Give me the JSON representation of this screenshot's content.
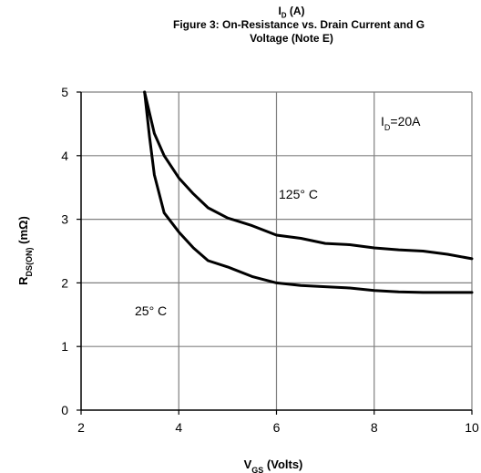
{
  "header": {
    "top_label": "I",
    "top_label_sub": "D",
    "top_label_unit": " (A)",
    "title_line1": "Figure 3: On-Resistance vs. Drain Current and G",
    "title_line2": "Voltage (Note E)"
  },
  "chart_data": {
    "type": "line",
    "xlabel": "V",
    "xlabel_sub": "GS",
    "xlabel_unit": " (Volts)",
    "ylabel": "R",
    "ylabel_sub": "DS(ON)",
    "ylabel_unit": " (mΩ)",
    "xlim": [
      2,
      10
    ],
    "ylim": [
      0,
      5
    ],
    "xticks": [
      2,
      4,
      6,
      8,
      10
    ],
    "yticks": [
      0,
      1,
      2,
      3,
      4,
      5
    ],
    "grid": true,
    "legend": "none",
    "annotations": [
      {
        "text": "I",
        "sub": "D",
        "rest": "=20A"
      },
      {
        "text": "125°  C"
      },
      {
        "text": "25°  C"
      }
    ],
    "series": [
      {
        "name": "125°C",
        "x": [
          3.3,
          3.5,
          3.7,
          4.0,
          4.3,
          4.6,
          5.0,
          5.5,
          6.0,
          6.5,
          7.0,
          7.5,
          8.0,
          8.5,
          9.0,
          9.5,
          10.0
        ],
        "y": [
          5.0,
          4.35,
          4.0,
          3.65,
          3.4,
          3.18,
          3.02,
          2.9,
          2.75,
          2.7,
          2.62,
          2.6,
          2.55,
          2.52,
          2.5,
          2.45,
          2.38
        ]
      },
      {
        "name": "25°C",
        "x": [
          3.3,
          3.4,
          3.5,
          3.7,
          4.0,
          4.3,
          4.6,
          5.0,
          5.5,
          6.0,
          6.5,
          7.0,
          7.5,
          8.0,
          8.5,
          9.0,
          9.5,
          10.0
        ],
        "y": [
          5.0,
          4.3,
          3.7,
          3.1,
          2.8,
          2.55,
          2.35,
          2.25,
          2.1,
          2.0,
          1.96,
          1.94,
          1.92,
          1.88,
          1.86,
          1.85,
          1.85,
          1.85
        ]
      }
    ],
    "colors": {
      "line": "#000000",
      "grid": "#808080",
      "axis": "#000000"
    }
  }
}
